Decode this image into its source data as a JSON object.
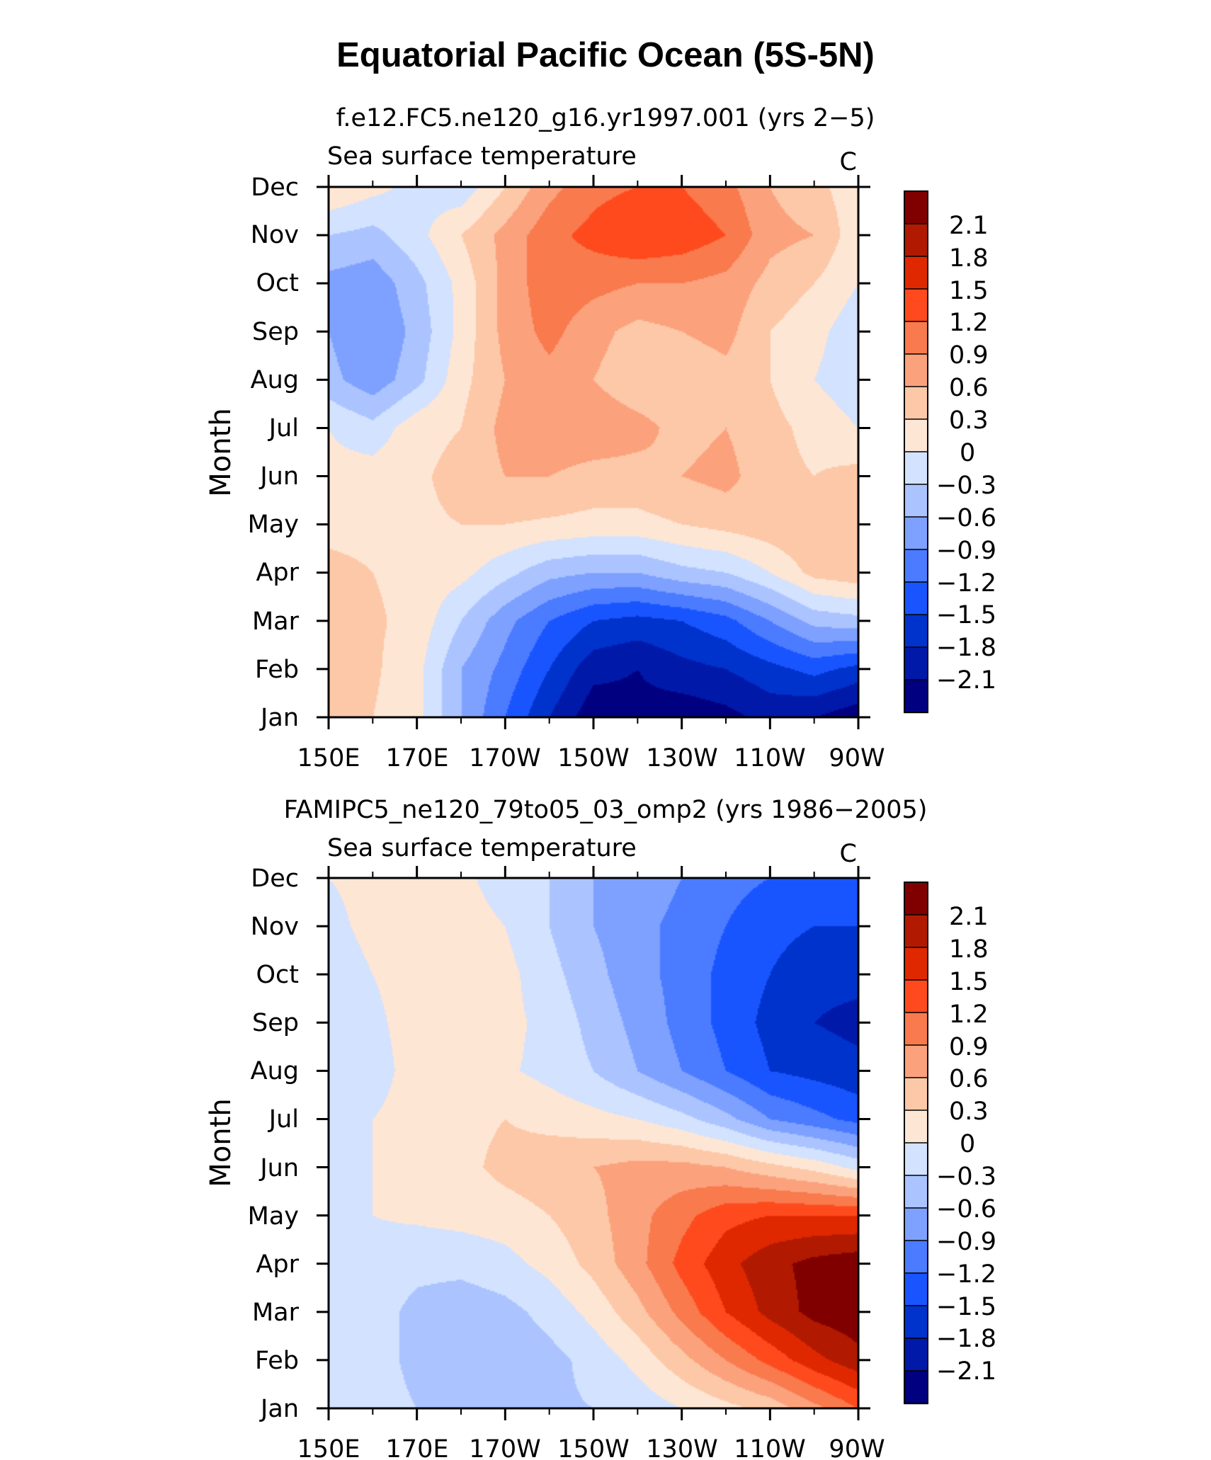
{
  "figure_title": "Equatorial Pacific Ocean (5S-5N)",
  "colors": {
    "levels": [
      "#000080",
      "#0019a8",
      "#0033cc",
      "#1955ff",
      "#4b7bff",
      "#7ea1ff",
      "#abc4ff",
      "#d2e2ff",
      "#fee6d5",
      "#fdc8a8",
      "#fba27d",
      "#f97a4d",
      "#fe4a1d",
      "#e02800",
      "#b11a00",
      "#800000"
    ],
    "axis": "#000000"
  },
  "chart_data": [
    {
      "type": "heatmap",
      "case_title": "f.e12.FC5.ne120_g16.yr1997.001 (yrs 2−5)",
      "left_title": "Sea surface temperature",
      "units": "C",
      "ylabel": "Month",
      "xlabel": "",
      "x_ticks": [
        "150E",
        "170E",
        "170W",
        "150W",
        "130W",
        "110W",
        "90W"
      ],
      "y_ticks": [
        "Jan",
        "Feb",
        "Mar",
        "Apr",
        "May",
        "Jun",
        "Jul",
        "Aug",
        "Sep",
        "Oct",
        "Nov",
        "Dec"
      ],
      "xlim": [
        150,
        270
      ],
      "ylim": [
        1,
        12
      ],
      "colorbar_labels": [
        "2.1",
        "1.8",
        "1.5",
        "1.2",
        "0.9",
        "0.6",
        "0.3",
        "0",
        "−0.3",
        "−0.6",
        "−0.9",
        "−1.2",
        "−1.5",
        "−1.8",
        "−2.1"
      ],
      "contour_levels": [
        -2.1,
        -1.8,
        -1.5,
        -1.2,
        -0.9,
        -0.6,
        -0.3,
        0,
        0.3,
        0.6,
        0.9,
        1.2,
        1.5,
        1.8,
        2.1
      ],
      "lon": [
        150,
        160,
        170,
        180,
        190,
        200,
        210,
        220,
        230,
        240,
        250,
        260,
        270
      ],
      "values": [
        [
          0.3,
          0.3,
          0.1,
          -0.6,
          -1.2,
          -1.8,
          -2.3,
          -2.2,
          -2.3,
          -2.2,
          -2.0,
          -2.1,
          -2.3
        ],
        [
          0.3,
          0.35,
          0.1,
          -0.6,
          -1.0,
          -1.5,
          -2.0,
          -2.1,
          -1.9,
          -1.8,
          -1.6,
          -1.4,
          -1.6
        ],
        [
          0.3,
          0.35,
          0.2,
          -0.3,
          -0.8,
          -1.2,
          -1.5,
          -1.6,
          -1.5,
          -1.3,
          -0.9,
          -0.5,
          -0.4
        ],
        [
          0.4,
          0.3,
          0.2,
          0.1,
          -0.2,
          -0.5,
          -0.6,
          -0.6,
          -0.4,
          -0.3,
          0.0,
          0.4,
          0.5
        ],
        [
          0.2,
          0.2,
          0.25,
          0.3,
          0.3,
          0.25,
          0.2,
          0.2,
          0.3,
          0.4,
          0.5,
          0.6,
          0.6
        ],
        [
          0.1,
          0.15,
          0.25,
          0.4,
          0.6,
          0.6,
          0.5,
          0.5,
          0.6,
          0.7,
          0.4,
          0.3,
          0.4
        ],
        [
          0.0,
          -0.2,
          0.2,
          0.3,
          0.7,
          0.8,
          0.8,
          0.7,
          0.5,
          0.6,
          0.4,
          0.2,
          0.0
        ],
        [
          -0.5,
          -0.8,
          -0.4,
          0.2,
          0.6,
          0.8,
          0.6,
          0.4,
          0.4,
          0.5,
          0.3,
          0.0,
          -0.2
        ],
        [
          -0.6,
          -0.9,
          -0.5,
          0.1,
          0.7,
          1.0,
          0.7,
          0.5,
          0.6,
          0.7,
          0.3,
          0.1,
          -0.2
        ],
        [
          -0.7,
          -0.8,
          -0.4,
          0.1,
          0.7,
          1.1,
          1.0,
          0.9,
          0.9,
          0.8,
          0.5,
          0.3,
          0.0
        ],
        [
          -0.3,
          -0.4,
          -0.1,
          0.3,
          0.7,
          1.1,
          1.3,
          1.5,
          1.4,
          1.2,
          0.7,
          0.6,
          0.1
        ],
        [
          0.3,
          0.1,
          -0.1,
          -0.2,
          0.3,
          0.8,
          1.1,
          1.2,
          1.2,
          1.0,
          0.6,
          0.4,
          0.1
        ]
      ]
    },
    {
      "type": "heatmap",
      "case_title": "FAMIPC5_ne120_79to05_03_omp2 (yrs 1986−2005)",
      "left_title": "Sea surface temperature",
      "units": "C",
      "ylabel": "Month",
      "xlabel": "",
      "x_ticks": [
        "150E",
        "170E",
        "170W",
        "150W",
        "130W",
        "110W",
        "90W"
      ],
      "y_ticks": [
        "Jan",
        "Feb",
        "Mar",
        "Apr",
        "May",
        "Jun",
        "Jul",
        "Aug",
        "Sep",
        "Oct",
        "Nov",
        "Dec"
      ],
      "xlim": [
        150,
        270
      ],
      "ylim": [
        1,
        12
      ],
      "colorbar_labels": [
        "2.1",
        "1.8",
        "1.5",
        "1.2",
        "0.9",
        "0.6",
        "0.3",
        "0",
        "−0.3",
        "−0.6",
        "−0.9",
        "−1.2",
        "−1.5",
        "−1.8",
        "−2.1"
      ],
      "contour_levels": [
        -2.1,
        -1.8,
        -1.5,
        -1.2,
        -0.9,
        -0.6,
        -0.3,
        0,
        0.3,
        0.6,
        0.9,
        1.2,
        1.5,
        1.8,
        2.1
      ],
      "lon": [
        150,
        160,
        170,
        180,
        190,
        200,
        210,
        220,
        230,
        240,
        250,
        260,
        270
      ],
      "values": [
        [
          -0.1,
          -0.15,
          -0.3,
          -0.4,
          -0.4,
          -0.35,
          -0.3,
          -0.2,
          0.0,
          0.2,
          0.4,
          0.8,
          1.2
        ],
        [
          -0.1,
          -0.15,
          -0.4,
          -0.5,
          -0.5,
          -0.4,
          -0.2,
          0.1,
          0.5,
          0.9,
          1.3,
          1.7,
          2.0
        ],
        [
          -0.1,
          -0.15,
          -0.4,
          -0.5,
          -0.4,
          -0.2,
          0.1,
          0.5,
          1.0,
          1.5,
          1.9,
          2.2,
          2.3
        ],
        [
          0.0,
          -0.1,
          -0.2,
          -0.2,
          -0.1,
          0.1,
          0.4,
          0.8,
          1.3,
          1.7,
          2.0,
          2.2,
          2.3
        ],
        [
          0.0,
          0.0,
          0.05,
          0.1,
          0.15,
          0.3,
          0.5,
          0.8,
          1.1,
          1.4,
          1.5,
          1.5,
          1.5
        ],
        [
          -0.1,
          0.0,
          0.1,
          0.2,
          0.4,
          0.5,
          0.6,
          0.7,
          0.7,
          0.6,
          0.4,
          0.2,
          -0.1
        ],
        [
          -0.2,
          0.0,
          0.1,
          0.2,
          0.3,
          0.2,
          0.1,
          0.0,
          -0.2,
          -0.5,
          -0.9,
          -1.1,
          -1.3
        ],
        [
          -0.3,
          -0.1,
          0.1,
          0.1,
          0.05,
          -0.1,
          -0.3,
          -0.6,
          -0.9,
          -1.2,
          -1.5,
          -1.6,
          -1.7
        ],
        [
          -0.2,
          -0.05,
          0.1,
          0.2,
          0.1,
          -0.1,
          -0.4,
          -0.7,
          -1.0,
          -1.3,
          -1.6,
          -1.8,
          -1.9
        ],
        [
          -0.1,
          0.0,
          0.1,
          0.15,
          0.1,
          -0.2,
          -0.5,
          -0.8,
          -1.0,
          -1.3,
          -1.5,
          -1.7,
          -1.7
        ],
        [
          -0.05,
          0.05,
          0.1,
          0.1,
          0.0,
          -0.3,
          -0.6,
          -0.8,
          -1.0,
          -1.2,
          -1.4,
          -1.5,
          -1.5
        ],
        [
          0.0,
          0.05,
          0.1,
          0.05,
          -0.1,
          -0.3,
          -0.6,
          -0.7,
          -0.9,
          -1.1,
          -1.2,
          -1.2,
          -1.2
        ]
      ]
    }
  ]
}
